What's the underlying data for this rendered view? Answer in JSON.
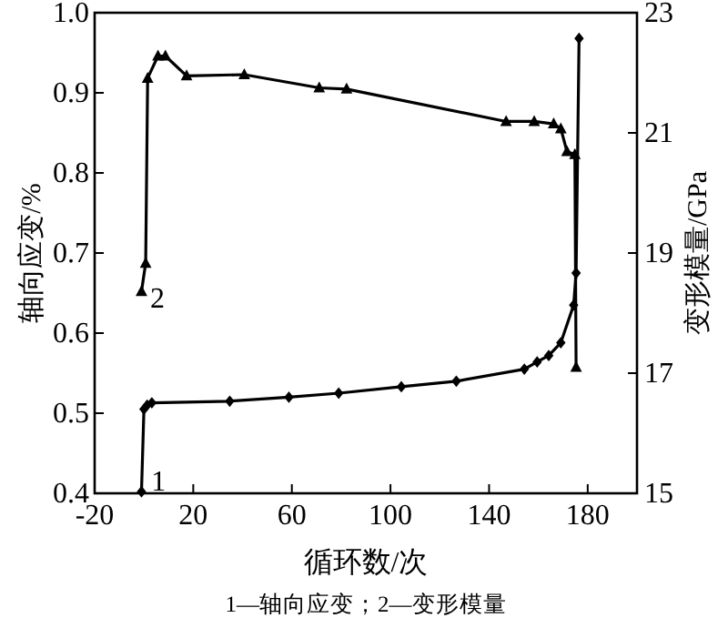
{
  "chart_data": {
    "type": "line",
    "xlabel": "循环数/次",
    "ylabel": "轴向应变/%",
    "y2label": "变形模量/GPa",
    "xlim": [
      -20,
      200
    ],
    "xticks": [
      -20,
      20,
      60,
      100,
      140,
      180
    ],
    "ylim": [
      0.4,
      1.0
    ],
    "yticks": [
      0.4,
      0.5,
      0.6,
      0.7,
      0.8,
      0.9,
      {
        "value": 1.0,
        "label": "1.0"
      }
    ],
    "y2lim": [
      15,
      23
    ],
    "y2ticks": [
      15,
      17,
      19,
      21,
      23
    ],
    "grid": false,
    "line_style": "solid",
    "series": [
      {
        "color": "#000000",
        "marker": "diamond",
        "x": [
          -1,
          0,
          1.3,
          3.2,
          34.8,
          58.8,
          79,
          104.4,
          126.7,
          154.3,
          159.5,
          164.2,
          169.1,
          174.3,
          175.3,
          176.5
        ],
        "values": [
          0.402,
          0.505,
          0.51,
          0.513,
          0.515,
          0.52,
          0.525,
          0.533,
          0.54,
          0.555,
          0.564,
          0.572,
          0.588,
          0.635,
          0.675,
          0.968
        ]
      },
      {
        "color": "#000000",
        "marker": "triangle",
        "axis": "y2",
        "x": [
          -1,
          0.7,
          1.5,
          5.7,
          8.7,
          17.3,
          40.7,
          71.1,
          82.2,
          146.9,
          158.3,
          166.2,
          169.1,
          171.6,
          174.8,
          175.3
        ],
        "values": [
          18.36,
          18.83,
          21.91,
          22.28,
          22.28,
          21.95,
          21.97,
          21.75,
          21.73,
          21.19,
          21.19,
          21.15,
          21.07,
          20.69,
          20.64,
          17.1
        ]
      }
    ],
    "annotations": [
      {
        "text": "1",
        "x": 3,
        "y": 0.415
      },
      {
        "text": "2",
        "x": 2.5,
        "y": 0.643
      },
      "1—轴向应变；2—变形模量"
    ]
  }
}
